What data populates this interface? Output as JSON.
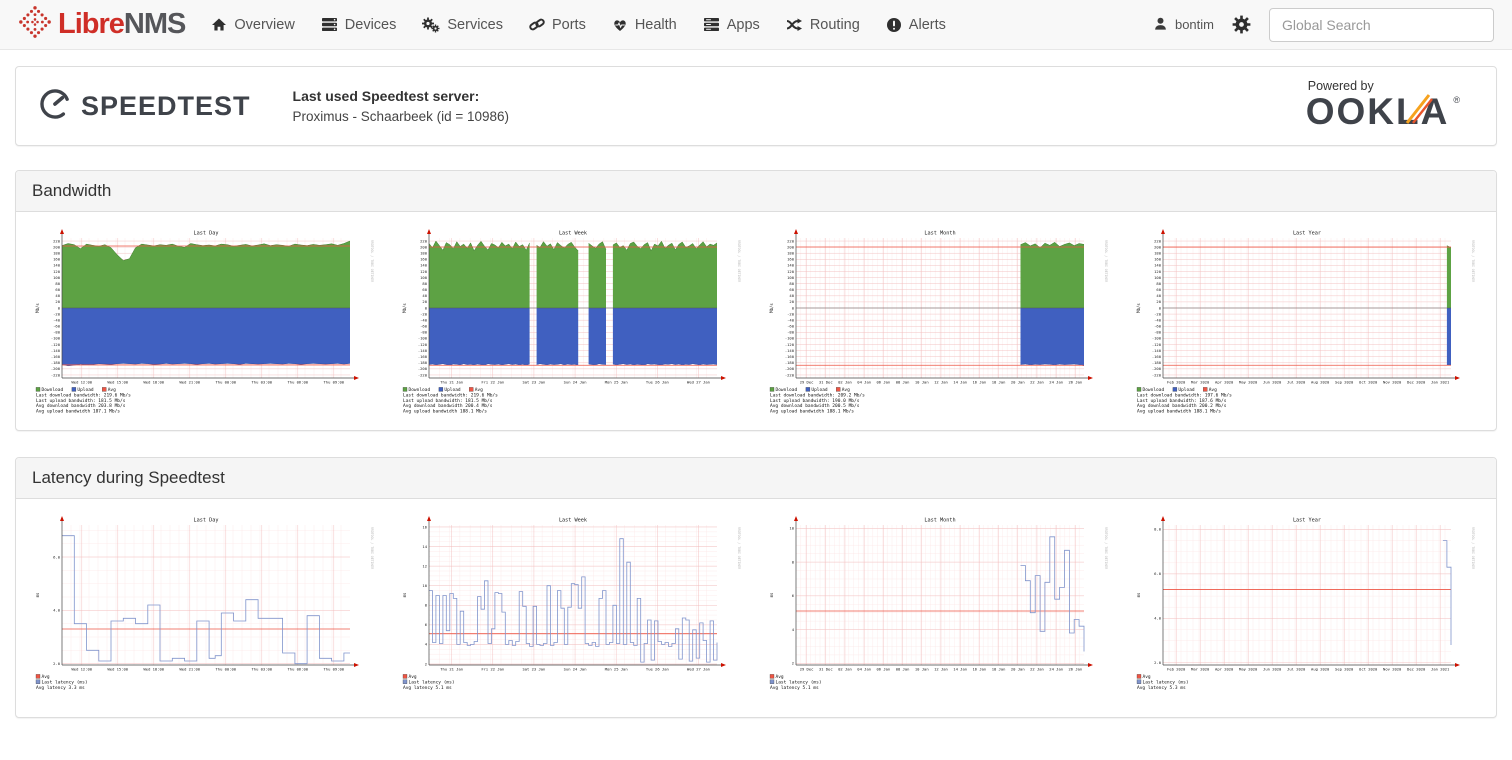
{
  "nav": {
    "brand": {
      "libre": "Libre",
      "nms": "NMS"
    },
    "items": [
      {
        "label": "Overview",
        "icon": "home-icon"
      },
      {
        "label": "Devices",
        "icon": "devices-icon"
      },
      {
        "label": "Services",
        "icon": "gears-icon"
      },
      {
        "label": "Ports",
        "icon": "link-icon"
      },
      {
        "label": "Health",
        "icon": "heartbeat-icon"
      },
      {
        "label": "Apps",
        "icon": "apps-icon"
      },
      {
        "label": "Routing",
        "icon": "shuffle-icon"
      },
      {
        "label": "Alerts",
        "icon": "alert-icon"
      }
    ],
    "user": "bontim",
    "search_placeholder": "Global Search"
  },
  "speedtest_card": {
    "logo_text": "SPEEDTEST",
    "last_server_label": "Last used Speedtest server:",
    "last_server_value": "Proximus - Schaarbeek (id = 10986)",
    "powered_by": "Powered by",
    "ookla_word": "OOKLA",
    "ookla_reg": "®"
  },
  "panels": {
    "bandwidth_title": "Bandwidth",
    "latency_title": "Latency during Speedtest"
  },
  "colors": {
    "download_green": "#5da244",
    "download_green_edge": "#3e7d2e",
    "upload_blue": "#4060c0",
    "upload_blue_edge": "#2f4da0",
    "avg_red": "#ee5544",
    "latency_blue": "#8094cc",
    "grid_major": "#f2bcbc",
    "grid_minor": "#fbe7e7",
    "axis": "#444444",
    "arrow": "#cc1100",
    "watermark": "#bbbbbb"
  },
  "chart_data": [
    {
      "type": "area",
      "kind": "bandwidth",
      "title": "Last Day",
      "ylabel": "Mb/s",
      "ylim": [
        -230,
        230
      ],
      "ytick_step": 20,
      "ytick_decimals": 0,
      "xticks": [
        "Wed 12:00",
        "Wed 15:00",
        "Wed 18:00",
        "Wed 21:00",
        "Thu 00:00",
        "Thu 03:00",
        "Thu 06:00",
        "Thu 09:00"
      ],
      "download": [
        205,
        212,
        208,
        195,
        210,
        206,
        203,
        208,
        198,
        175,
        156,
        162,
        198,
        210,
        207,
        204,
        208,
        206,
        210,
        203,
        199,
        212,
        208,
        205,
        207,
        204,
        210,
        208,
        203,
        206,
        209,
        204,
        207,
        211,
        205,
        208,
        206,
        203,
        210,
        207,
        205,
        209,
        206,
        208,
        211,
        206,
        212,
        220
      ],
      "upload": [
        186,
        190,
        188,
        184,
        186,
        185,
        183,
        184,
        185,
        183,
        182,
        183,
        184,
        182,
        183,
        185,
        184,
        182,
        184,
        183,
        182,
        183,
        185,
        183,
        182,
        184,
        183,
        182,
        183,
        185,
        182,
        183,
        184,
        183,
        182,
        183,
        184,
        182,
        183,
        185,
        183,
        182,
        183,
        184,
        183,
        182,
        184,
        182
      ],
      "avg_download": 203.8,
      "avg_upload": 187.1,
      "legend": [
        {
          "label": "Download",
          "color": "#5da244"
        },
        {
          "label": "Upload",
          "color": "#4060c0"
        },
        {
          "label": "Avg",
          "color": "#ee5544"
        }
      ],
      "legend_layout": "row",
      "footer_lines": [
        "Last download bandwidth: 219.6 Mb/s",
        "Last upload bandwidth: 181.5 Mb/s",
        "Avg download bandwidth 203.8 Mb/s",
        "Avg upload bandwidth 187.1 Mb/s"
      ]
    },
    {
      "type": "area",
      "kind": "bandwidth",
      "title": "Last Week",
      "ylabel": "Mb/s",
      "ylim": [
        -230,
        230
      ],
      "ytick_step": 20,
      "ytick_decimals": 0,
      "xticks": [
        "Thu 21 Jan",
        "Fri 22 Jan",
        "Sat 23 Jan",
        "Sun 24 Jan",
        "Mon 25 Jan",
        "Tue 26 Jan",
        "Wed 27 Jan"
      ],
      "download": [
        212,
        198,
        220,
        205,
        190,
        215,
        208,
        195,
        218,
        202,
        210,
        196,
        214,
        188,
        206,
        219,
        203,
        191,
        212,
        207,
        198,
        216,
        204,
        210,
        195,
        217,
        202,
        208,
        190,
        214,
        null,
        206,
        199,
        218,
        203,
        211,
        192,
        215,
        205,
        197,
        209,
        216,
        200,
        188,
        null,
        null,
        213,
        204,
        196,
        210,
        218,
        192,
        null,
        207,
        214,
        199,
        205,
        190,
        212,
        217,
        203,
        195,
        208,
        215,
        188,
        210,
        204,
        219,
        196,
        206,
        213,
        191,
        209,
        217,
        199,
        204,
        212,
        195,
        207,
        218,
        201,
        210,
        206,
        214
      ],
      "upload": [
        186,
        184,
        187,
        185,
        183,
        186,
        188,
        184,
        185,
        187,
        183,
        186,
        185,
        187,
        184,
        186,
        188,
        183,
        185,
        186,
        184,
        187,
        185,
        183,
        186,
        184,
        187,
        185,
        188,
        184,
        null,
        186,
        183,
        185,
        187,
        184,
        186,
        185,
        183,
        187,
        184,
        186,
        185,
        188,
        null,
        null,
        184,
        186,
        187,
        183,
        185,
        186,
        null,
        184,
        187,
        185,
        183,
        186,
        184,
        187,
        185,
        186,
        188,
        183,
        185,
        184,
        186,
        187,
        184,
        185,
        183,
        186,
        184,
        187,
        185,
        186,
        183,
        185,
        187,
        184,
        186,
        185,
        184,
        186
      ],
      "avg_download": 200.4,
      "avg_upload": 188.1,
      "legend": [
        {
          "label": "Download",
          "color": "#5da244"
        },
        {
          "label": "Upload",
          "color": "#4060c0"
        },
        {
          "label": "Avg",
          "color": "#ee5544"
        }
      ],
      "legend_layout": "row",
      "footer_lines": [
        "Last download bandwidth: 219.6 Mb/s",
        "Last upload bandwidth: 181.5 Mb/s",
        "Avg download bandwidth 200.4 Mb/s",
        "Avg upload bandwidth 188.1 Mb/s"
      ]
    },
    {
      "type": "area",
      "kind": "bandwidth",
      "title": "Last Month",
      "ylabel": "Mb/s",
      "ylim": [
        -230,
        230
      ],
      "ytick_step": 20,
      "ytick_decimals": 0,
      "lead_nulls": 46,
      "xticks": [
        "29 Dec",
        "31 Dec",
        "02 Jan",
        "04 Jan",
        "06 Jan",
        "08 Jan",
        "10 Jan",
        "12 Jan",
        "14 Jan",
        "16 Jan",
        "18 Jan",
        "20 Jan",
        "22 Jan",
        "24 Jan",
        "26 Jan"
      ],
      "download": [
        208,
        215,
        204,
        211,
        198,
        213,
        206,
        216,
        202,
        209,
        214,
        205,
        212,
        209
      ],
      "upload": [
        186,
        184,
        187,
        185,
        186,
        184,
        185,
        187,
        184,
        186,
        185,
        184,
        186,
        190
      ],
      "avg_download": 200.5,
      "avg_upload": 188.1,
      "legend": [
        {
          "label": "Download",
          "color": "#5da244"
        },
        {
          "label": "Upload",
          "color": "#4060c0"
        },
        {
          "label": "Avg",
          "color": "#ee5544"
        }
      ],
      "legend_layout": "row",
      "footer_lines": [
        "Last download bandwidth: 209.2 Mb/s",
        "Last upload bandwidth: 190.0 Mb/s",
        "Avg download bandwidth 200.5 Mb/s",
        "Avg upload bandwidth 188.1 Mb/s"
      ]
    },
    {
      "type": "area",
      "kind": "bandwidth",
      "title": "Last Year",
      "ylabel": "Mb/s",
      "ylim": [
        -230,
        230
      ],
      "ytick_step": 20,
      "ytick_decimals": 0,
      "lead_nulls": 70,
      "xticks": [
        "Feb 2020",
        "Mar 2020",
        "Apr 2020",
        "May 2020",
        "Jun 2020",
        "Jul 2020",
        "Aug 2020",
        "Sep 2020",
        "Oct 2020",
        "Nov 2020",
        "Dec 2020",
        "Jan 2021"
      ],
      "download": [
        205,
        198
      ],
      "upload": [
        186,
        188
      ],
      "avg_download": 200.2,
      "avg_upload": 188.1,
      "legend": [
        {
          "label": "Download",
          "color": "#5da244"
        },
        {
          "label": "Upload",
          "color": "#4060c0"
        },
        {
          "label": "Avg",
          "color": "#ee5544"
        }
      ],
      "legend_layout": "row",
      "footer_lines": [
        "Last download bandwidth: 197.6 Mb/s",
        "Last upload bandwidth: 187.6 Mb/s",
        "Avg download bandwidth 200.2 Mb/s",
        "Avg upload bandwidth 188.1 Mb/s"
      ]
    },
    {
      "type": "line",
      "kind": "latency",
      "title": "Last Day",
      "ylabel": "ms",
      "ylim": [
        1.95,
        7.2
      ],
      "ytick_step": 2,
      "ytick_decimals": 1,
      "xticks": [
        "Wed 12:00",
        "Wed 15:00",
        "Wed 18:00",
        "Wed 21:00",
        "Thu 00:00",
        "Thu 03:00",
        "Thu 06:00",
        "Thu 09:00"
      ],
      "values": [
        6.8,
        6.8,
        3.5,
        3.5,
        2.5,
        2.5,
        2.1,
        2.1,
        3.6,
        3.6,
        3.7,
        3.7,
        3.5,
        3.5,
        4.2,
        4.2,
        2.1,
        2.1,
        2.2,
        2.2,
        2.1,
        2.1,
        3.6,
        3.6,
        2.2,
        2.3,
        3.9,
        3.9,
        3.6,
        3.6,
        4.4,
        4.4,
        3.7,
        3.7,
        3.7,
        3.7,
        2.4,
        2.4,
        2.0,
        2.0,
        3.8,
        3.8,
        2.2,
        2.2,
        2.1,
        2.1,
        2.4,
        2.4
      ],
      "avg": 3.3,
      "legend": [
        {
          "label": "Avg",
          "color": "#ee5544"
        },
        {
          "label": "Last latency (ms)",
          "color": "#8094cc"
        }
      ],
      "legend_layout": "column",
      "footer_lines": [
        "Avg latency 3.3 ms"
      ]
    },
    {
      "type": "line",
      "kind": "latency",
      "title": "Last Week",
      "ylabel": "ms",
      "ylim": [
        1.9,
        16.2
      ],
      "ytick_step": 2,
      "ytick_decimals": 0,
      "xticks": [
        "Thu 21 Jan",
        "Fri 22 Jan",
        "Sat 23 Jan",
        "Sun 24 Jan",
        "Mon 25 Jan",
        "Tue 26 Jan",
        "Wed 27 Jan"
      ],
      "values": [
        9.5,
        4.2,
        9.0,
        4.1,
        9.0,
        5.4,
        9.2,
        8.7,
        4.0,
        7.4,
        4.2,
        3.9,
        4.0,
        4.3,
        8.9,
        7.6,
        10.5,
        4.1,
        5.6,
        9.3,
        9.2,
        7.3,
        4.0,
        4.4,
        3.9,
        4.3,
        9.4,
        7.9,
        4.1,
        3.8,
        7.9,
        4.0,
        3.9,
        4.1,
        10.0,
        3.9,
        4.2,
        9.5,
        7.7,
        4.0,
        7.8,
        10.2,
        10.1,
        7.7,
        10.9,
        4.1,
        3.9,
        4.2,
        3.8,
        8.7,
        9.5,
        4.0,
        4.2,
        8.0,
        4.1,
        14.8,
        4.0,
        12.4,
        4.2,
        3.9,
        8.7,
        2.2,
        4.1,
        6.5,
        2.4,
        6.4,
        4.3,
        4.0,
        4.2,
        3.8,
        4.1,
        5.6,
        2.5,
        6.7,
        6.5,
        2.3,
        5.5,
        2.6,
        6.2,
        4.4,
        2.2,
        6.4,
        2.4,
        4.2
      ],
      "avg": 5.1,
      "legend": [
        {
          "label": "Avg",
          "color": "#ee5544"
        },
        {
          "label": "Last latency (ms)",
          "color": "#8094cc"
        }
      ],
      "legend_layout": "column",
      "footer_lines": [
        "Avg latency 5.1 ms"
      ]
    },
    {
      "type": "line",
      "kind": "latency",
      "title": "Last Month",
      "ylabel": "ms",
      "ylim": [
        1.9,
        10.2
      ],
      "ytick_step": 2,
      "ytick_decimals": 0,
      "lead_nulls": 46,
      "xticks": [
        "29 Dec",
        "31 Dec",
        "02 Jan",
        "04 Jan",
        "06 Jan",
        "08 Jan",
        "10 Jan",
        "12 Jan",
        "14 Jan",
        "16 Jan",
        "18 Jan",
        "20 Jan",
        "22 Jan",
        "24 Jan",
        "26 Jan"
      ],
      "values": [
        7.8,
        6.9,
        5.0,
        7.2,
        3.9,
        6.8,
        9.5,
        5.8,
        6.5,
        8.7,
        3.8,
        4.6,
        4.2,
        2.7
      ],
      "avg": 5.1,
      "legend": [
        {
          "label": "Avg",
          "color": "#ee5544"
        },
        {
          "label": "Last latency (ms)",
          "color": "#8094cc"
        }
      ],
      "legend_layout": "column",
      "footer_lines": [
        "Avg latency 5.1 ms"
      ]
    },
    {
      "type": "line",
      "kind": "latency",
      "title": "Last Year",
      "ylabel": "ms",
      "ylim": [
        1.9,
        8.2
      ],
      "ytick_step": 2,
      "ytick_decimals": 1,
      "lead_nulls": 69,
      "xticks": [
        "Feb 2020",
        "Mar 2020",
        "Apr 2020",
        "May 2020",
        "Jun 2020",
        "Jul 2020",
        "Aug 2020",
        "Sep 2020",
        "Oct 2020",
        "Nov 2020",
        "Dec 2020",
        "Jan 2021"
      ],
      "values": [
        7.5,
        6.3,
        2.8
      ],
      "avg": 5.3,
      "legend": [
        {
          "label": "Avg",
          "color": "#ee5544"
        },
        {
          "label": "Last latency (ms)",
          "color": "#8094cc"
        }
      ],
      "legend_layout": "column",
      "footer_lines": [
        "Avg latency 5.3 ms"
      ]
    }
  ]
}
